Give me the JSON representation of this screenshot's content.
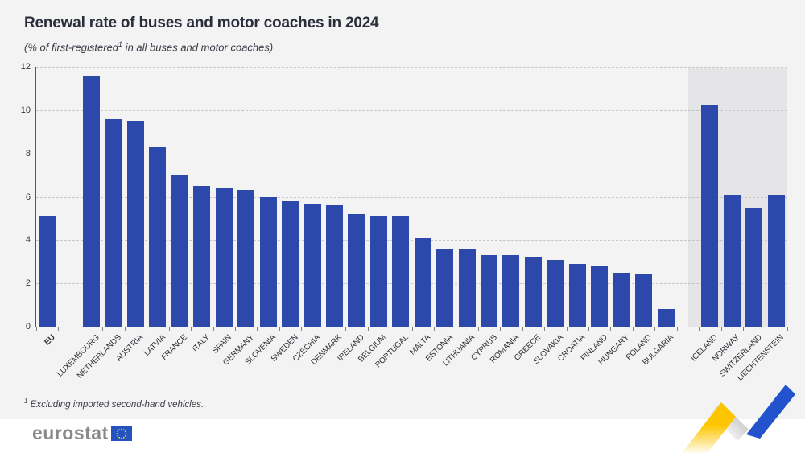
{
  "header": {
    "title": "Renewal rate of buses and motor coaches in 2024",
    "subtitle_pre": "(% of first-registered",
    "subtitle_sup": "1",
    "subtitle_post": " in all buses and motor coaches)"
  },
  "footnote": {
    "sup": "1",
    "text": " Excluding imported second-hand vehicles."
  },
  "logo": {
    "text": "eurostat",
    "flag_blue": "#2552be",
    "star_yellow": "#ffd617"
  },
  "colors": {
    "bar": "#2b48aa",
    "page_background": "#f3f3f4",
    "non_eu_panel": "#e5e5e7",
    "gridline": "#c7c8cb",
    "deco_yellow": "#fdc500",
    "deco_blue": "#2253cc"
  },
  "chart_data": {
    "type": "bar",
    "title": "Renewal rate of buses and motor coaches in 2024",
    "subtitle": "(% of first-registered¹ in all buses and motor coaches)",
    "xlabel": "",
    "ylabel": "",
    "ylim": [
      0,
      12
    ],
    "yticks": [
      0,
      2,
      4,
      6,
      8,
      10,
      12
    ],
    "grid": "dashed horizontal",
    "legend": "none",
    "categories": [
      "EU",
      "LUXEMBOURG",
      "NETHERLANDS",
      "AUSTRIA",
      "LATVIA",
      "FRANCE",
      "ITALY",
      "SPAIN",
      "GERMANY",
      "SLOVENIA",
      "SWEDEN",
      "CZECHIA",
      "DENMARK",
      "IRELAND",
      "BELGIUM",
      "PORTUGAL",
      "MALTA",
      "ESTONIA",
      "LITHUANIA",
      "CYPRUS",
      "ROMANIA",
      "GREECE",
      "SLOVAKIA",
      "CROATIA",
      "FINLAND",
      "HUNGARY",
      "POLAND",
      "BULGARIA",
      "ICELAND",
      "NORWAY",
      "SWITZERLAND",
      "LIECHTENSTEIN"
    ],
    "values": [
      5.1,
      11.6,
      9.6,
      9.5,
      8.3,
      7.0,
      6.5,
      6.4,
      6.3,
      6.0,
      5.8,
      5.7,
      5.6,
      5.2,
      5.1,
      5.1,
      4.1,
      3.6,
      3.6,
      3.3,
      3.3,
      3.2,
      3.1,
      2.9,
      2.8,
      2.5,
      2.4,
      0.8,
      10.2,
      6.1,
      5.5,
      6.1
    ],
    "gaps_after": [
      "EU",
      "BULGARIA"
    ],
    "shaded_group": [
      "ICELAND",
      "NORWAY",
      "SWITZERLAND",
      "LIECHTENSTEIN"
    ],
    "bold_categories": [
      "EU"
    ]
  }
}
